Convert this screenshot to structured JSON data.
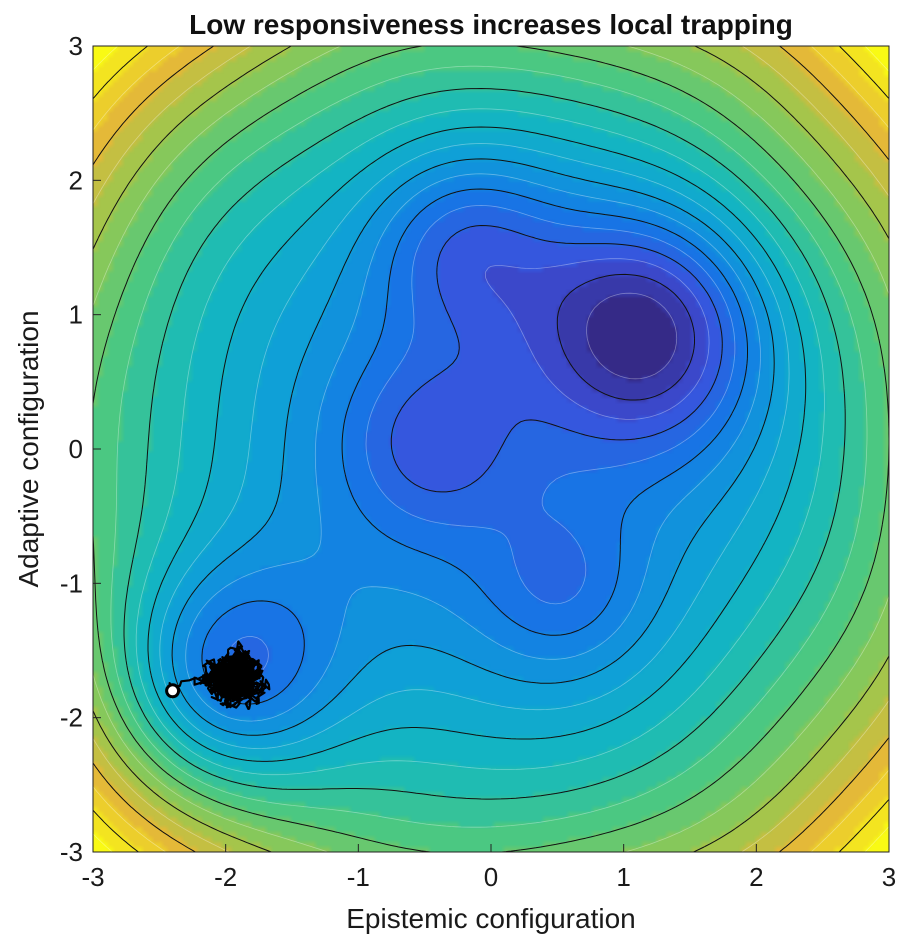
{
  "chart_data": {
    "type": "heatmap",
    "subtype": "filled-contour",
    "title": "Low responsiveness increases local trapping",
    "xlabel": "Epistemic configuration",
    "ylabel": "Adaptive configuration",
    "xlim": [
      -3,
      3
    ],
    "ylim": [
      -3,
      3
    ],
    "xticks": [
      -3,
      -2,
      -1,
      0,
      1,
      2,
      3
    ],
    "yticks": [
      -3,
      -2,
      -1,
      0,
      1,
      2,
      3
    ],
    "xtick_labels": [
      "-3",
      "-2",
      "-1",
      "0",
      "1",
      "2",
      "3"
    ],
    "ytick_labels": [
      "-3",
      "-2",
      "-1",
      "0",
      "1",
      "2",
      "3"
    ],
    "colormap": "parula",
    "grid": false,
    "legend": "none",
    "wells": [
      {
        "x": 1.2,
        "y": 0.9,
        "depth": 1.0
      },
      {
        "x": -0.2,
        "y": 1.55,
        "depth": 0.55
      },
      {
        "x": -2.0,
        "y": -1.7,
        "depth": 0.85
      },
      {
        "x": -0.45,
        "y": 0.05,
        "depth": 0.35
      },
      {
        "x": 0.55,
        "y": -1.05,
        "depth": 0.3
      }
    ],
    "trajectory": {
      "start": {
        "x": -2.4,
        "y": -1.8
      },
      "cluster_center": {
        "x": -1.95,
        "y": -1.7
      },
      "cluster_spread": 0.13,
      "color": "#000000"
    }
  }
}
